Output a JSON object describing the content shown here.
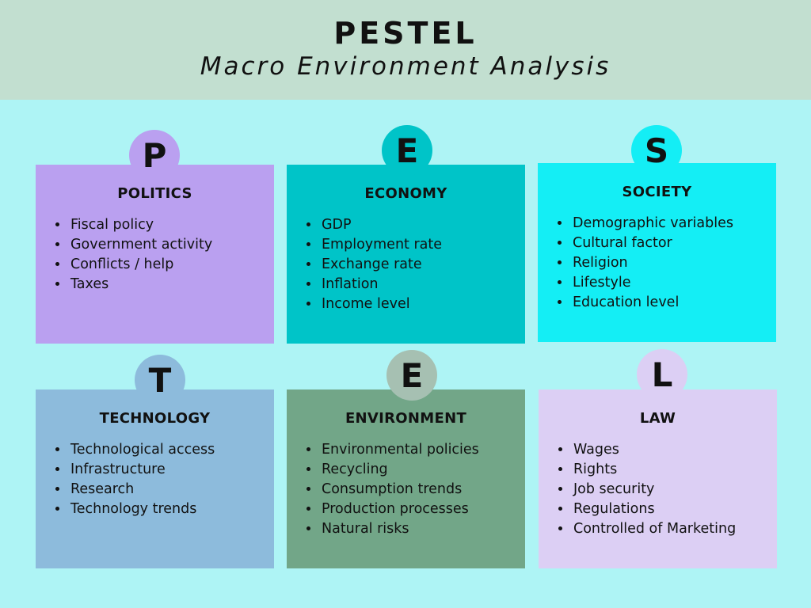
{
  "header": {
    "title": "PESTEL",
    "subtitle": "Macro Environment Analysis"
  },
  "factors": [
    {
      "letter": "P",
      "title": "POLITICS",
      "color": "#baa0f0",
      "badge_color": "#baa0f0",
      "items": [
        "Fiscal policy",
        "Government activity",
        "Conflicts / help",
        "Taxes"
      ]
    },
    {
      "letter": "E",
      "title": "ECONOMY",
      "color": "#00c4c8",
      "badge_color": "#00c4c8",
      "items": [
        "GDP",
        "Employment rate",
        "Exchange rate",
        "Inflation",
        "Income level"
      ]
    },
    {
      "letter": "S",
      "title": "SOCIETY",
      "color": "#14eef5",
      "badge_color": "#14eef5",
      "items": [
        "Demographic variables",
        "Cultural factor",
        "Religion",
        "Lifestyle",
        "Education level"
      ]
    },
    {
      "letter": "T",
      "title": "TECHNOLOGY",
      "color": "#8dbbdc",
      "badge_color": "#8dbbdc",
      "items": [
        "Technological access",
        "Infrastructure",
        "Research",
        "Technology trends"
      ]
    },
    {
      "letter": "E",
      "title": "ENVIRONMENT",
      "color": "#72a688",
      "badge_color": "#a6c0b2",
      "items": [
        "Environmental policies",
        "Recycling",
        "Consumption trends",
        "Production processes",
        "Natural risks"
      ]
    },
    {
      "letter": "L",
      "title": "LAW",
      "color": "#dccff4",
      "badge_color": "#dccff4",
      "items": [
        "Wages",
        "Rights",
        "Job security",
        "Regulations",
        "Controlled of Marketing"
      ]
    }
  ]
}
